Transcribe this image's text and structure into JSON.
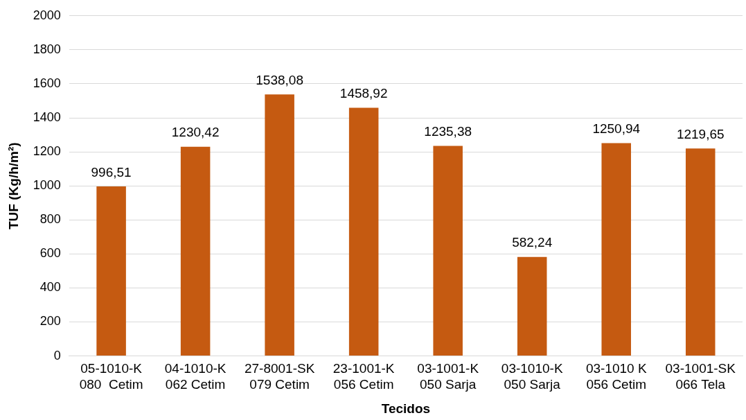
{
  "chart_data": {
    "type": "bar",
    "xlabel": "Tecidos",
    "ylabel": "TUF (Kg/h/m²)",
    "categories": [
      "05-1010-K\n080  Cetim",
      "04-1010-K\n062 Cetim",
      "27-8001-SK\n079 Cetim",
      "23-1001-K\n056 Cetim",
      "03-1001-K\n050 Sarja",
      "03-1010-K\n050 Sarja",
      "03-1010 K\n056 Cetim",
      "03-1001-SK\n066 Tela"
    ],
    "values": [
      996.51,
      1230.42,
      1538.08,
      1458.92,
      1235.38,
      582.24,
      1250.94,
      1219.65
    ],
    "value_labels": [
      "996,51",
      "1230,42",
      "1538,08",
      "1458,92",
      "1235,38",
      "582,24",
      "1250,94",
      "1219,65"
    ],
    "color": "#c55a11",
    "ylim": [
      0,
      2000
    ],
    "yticks": [
      0,
      200,
      400,
      600,
      800,
      1000,
      1200,
      1400,
      1600,
      1800,
      2000
    ],
    "grid": "y",
    "legend": false
  }
}
